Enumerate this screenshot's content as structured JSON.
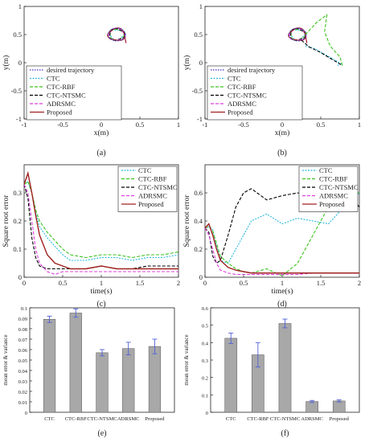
{
  "legend_labels": [
    "desired trajectory",
    "CTC",
    "CTC-RBF",
    "CTC-NTSMC",
    "ADRSMC",
    "Proposed"
  ],
  "time_legend_labels": [
    "CTC",
    "CTC-RBF",
    "CTC-NTSMC",
    "ADRSMC",
    "Proposed"
  ],
  "colors": {
    "desired": "#3b2fd0",
    "CTC": "#29b8e0",
    "CTC-RBF": "#3cc41e",
    "CTC-NTSMC": "#000000",
    "ADRSMC": "#e03ee0",
    "Proposed": "#a02020",
    "bar": "#a8a8a8",
    "errorbar": "#5060d8"
  },
  "chart_data": [
    {
      "id": "a",
      "type": "line",
      "caption": "(a)",
      "xlabel": "x(m)",
      "ylabel": "y(m)",
      "xlim": [
        -1,
        1
      ],
      "ylim": [
        -1,
        1
      ],
      "xticks": [
        "-1",
        "-0.5",
        "0",
        "0.5",
        "1"
      ],
      "yticks": [
        "-1",
        "-0.5",
        "0",
        "0.5",
        "1"
      ],
      "circle": {
        "center": [
          0.2,
          0.5
        ],
        "radius": 0.1
      },
      "legend": "bottom-left"
    },
    {
      "id": "b",
      "type": "line",
      "caption": "(b)",
      "xlabel": "x(m)",
      "ylabel": "y(m)",
      "xlim": [
        -1,
        1
      ],
      "ylim": [
        -1,
        1
      ],
      "xticks": [
        "-1",
        "-0.5",
        "0",
        "0.5",
        "1"
      ],
      "yticks": [
        "-1",
        "-0.5",
        "0",
        "0.5",
        "1"
      ],
      "circle": {
        "center": [
          0.2,
          0.5
        ],
        "radius": 0.1
      },
      "drift_series": [
        {
          "name": "CTC",
          "x": [
            0.3,
            0.42,
            0.55,
            0.68,
            0.76,
            0.72
          ],
          "y": [
            0.3,
            0.25,
            0.15,
            0.05,
            -0.02,
            -0.05
          ]
        },
        {
          "name": "CTC-RBF",
          "x": [
            0.3,
            0.45,
            0.58,
            0.55,
            0.62,
            0.75,
            0.78
          ],
          "y": [
            0.5,
            0.72,
            0.85,
            0.55,
            0.3,
            0.1,
            -0.05
          ]
        },
        {
          "name": "CTC-NTSMC",
          "x": [
            0.25,
            0.35,
            0.5,
            0.62,
            0.72,
            0.78
          ],
          "y": [
            0.4,
            0.28,
            0.18,
            0.08,
            0.0,
            -0.05
          ]
        }
      ],
      "legend": "top-left"
    },
    {
      "id": "c",
      "type": "line",
      "caption": "(c)",
      "xlabel": "time(s)",
      "ylabel": "Square root error",
      "xlim": [
        0,
        2
      ],
      "ylim": [
        0,
        0.4
      ],
      "xticks": [
        "0",
        "0.5",
        "1",
        "1.5",
        "2"
      ],
      "yticks": [
        "0",
        "0.1",
        "0.2",
        "0.3"
      ],
      "x": [
        0,
        0.05,
        0.1,
        0.15,
        0.2,
        0.3,
        0.4,
        0.5,
        0.6,
        0.8,
        1.0,
        1.2,
        1.4,
        1.6,
        1.8,
        2.0
      ],
      "series": [
        {
          "name": "CTC",
          "values": [
            0.33,
            0.34,
            0.3,
            0.23,
            0.18,
            0.14,
            0.11,
            0.08,
            0.06,
            0.06,
            0.07,
            0.07,
            0.06,
            0.07,
            0.07,
            0.08
          ]
        },
        {
          "name": "CTC-RBF",
          "values": [
            0.33,
            0.34,
            0.3,
            0.24,
            0.2,
            0.16,
            0.13,
            0.1,
            0.08,
            0.07,
            0.08,
            0.08,
            0.07,
            0.08,
            0.08,
            0.09
          ]
        },
        {
          "name": "CTC-NTSMC",
          "values": [
            0.33,
            0.28,
            0.14,
            0.07,
            0.04,
            0.03,
            0.03,
            0.03,
            0.03,
            0.03,
            0.04,
            0.03,
            0.03,
            0.04,
            0.04,
            0.04
          ]
        },
        {
          "name": "ADRSMC",
          "values": [
            0.33,
            0.3,
            0.2,
            0.1,
            0.05,
            0.02,
            0.01,
            0.02,
            0.02,
            0.02,
            0.02,
            0.02,
            0.02,
            0.02,
            0.02,
            0.02
          ]
        },
        {
          "name": "Proposed",
          "values": [
            0.33,
            0.37,
            0.3,
            0.22,
            0.15,
            0.08,
            0.05,
            0.04,
            0.03,
            0.03,
            0.04,
            0.03,
            0.03,
            0.03,
            0.03,
            0.03
          ]
        }
      ],
      "legend": "top-right"
    },
    {
      "id": "d",
      "type": "line",
      "caption": "(d)",
      "xlabel": "time(s)",
      "ylabel": "Square root error",
      "xlim": [
        0,
        2
      ],
      "ylim": [
        0,
        0.8
      ],
      "xticks": [
        "0",
        "0.5",
        "1",
        "1.5",
        "2"
      ],
      "yticks": [
        "0",
        "0.2",
        "0.4",
        "0.6"
      ],
      "x": [
        0,
        0.05,
        0.1,
        0.15,
        0.2,
        0.3,
        0.4,
        0.5,
        0.6,
        0.8,
        1.0,
        1.2,
        1.4,
        1.6,
        1.8,
        2.0
      ],
      "series": [
        {
          "name": "CTC",
          "values": [
            0.35,
            0.36,
            0.34,
            0.22,
            0.12,
            0.1,
            0.2,
            0.3,
            0.4,
            0.45,
            0.38,
            0.42,
            0.4,
            0.38,
            0.5,
            0.6
          ]
        },
        {
          "name": "CTC-RBF",
          "values": [
            0.35,
            0.36,
            0.33,
            0.24,
            0.15,
            0.1,
            0.06,
            0.04,
            0.03,
            0.06,
            0.01,
            0.1,
            0.3,
            0.5,
            0.62,
            0.6
          ]
        },
        {
          "name": "CTC-NTSMC",
          "values": [
            0.35,
            0.32,
            0.15,
            0.1,
            0.12,
            0.3,
            0.5,
            0.6,
            0.63,
            0.55,
            0.58,
            0.6,
            0.58,
            0.6,
            0.62,
            0.5
          ]
        },
        {
          "name": "ADRSMC",
          "values": [
            0.35,
            0.3,
            0.2,
            0.1,
            0.05,
            0.03,
            0.02,
            0.02,
            0.02,
            0.02,
            0.02,
            0.02,
            0.03,
            0.03,
            0.03,
            0.03
          ]
        },
        {
          "name": "Proposed",
          "values": [
            0.35,
            0.38,
            0.3,
            0.2,
            0.12,
            0.07,
            0.05,
            0.04,
            0.03,
            0.03,
            0.03,
            0.03,
            0.03,
            0.03,
            0.03,
            0.03
          ]
        }
      ],
      "legend": "top-right"
    },
    {
      "id": "e",
      "type": "bar",
      "caption": "(e)",
      "ylabel": "mean error & variance",
      "ylim": [
        0,
        0.1
      ],
      "yticks": [
        "0",
        "0.01",
        "0.02",
        "0.03",
        "0.04",
        "0.05",
        "0.06",
        "0.07",
        "0.08",
        "0.09",
        "0.1"
      ],
      "categories": [
        "CTC",
        "CTC-RBF",
        "CTC-NTSMC",
        "ADRSMC",
        "Proposed"
      ],
      "values": [
        0.089,
        0.095,
        0.057,
        0.061,
        0.063
      ],
      "errors": [
        0.003,
        0.004,
        0.003,
        0.006,
        0.007
      ]
    },
    {
      "id": "f",
      "type": "bar",
      "caption": "(f)",
      "ylabel": "mean error & variance",
      "ylim": [
        0,
        0.6
      ],
      "yticks": [
        "0",
        "0.1",
        "0.2",
        "0.3",
        "0.4",
        "0.5",
        "0.6"
      ],
      "categories": [
        "CTC",
        "CTC-RBF",
        "CTC-NTSMC",
        "ADRSMC",
        "Proposed"
      ],
      "values": [
        0.425,
        0.33,
        0.51,
        0.062,
        0.065
      ],
      "errors": [
        0.03,
        0.07,
        0.025,
        0.006,
        0.006
      ]
    }
  ]
}
